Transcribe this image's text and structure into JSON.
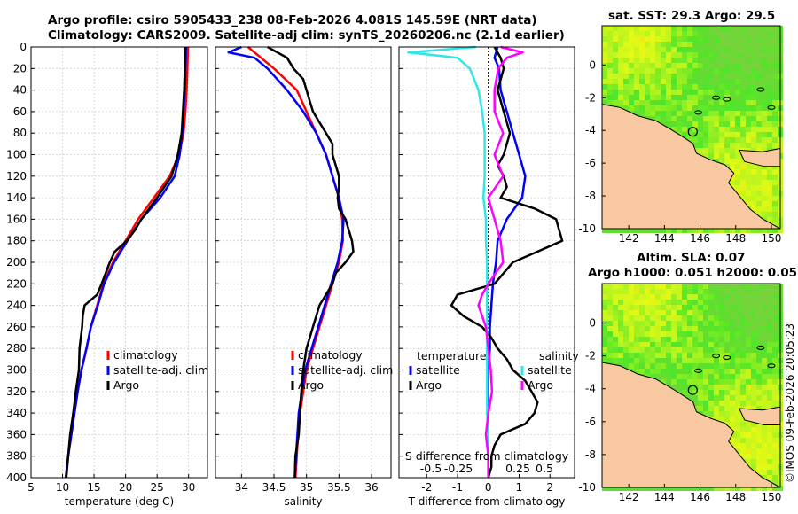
{
  "titles": {
    "line1": "Argo profile: csiro 5905433_238 08-Feb-2026 4.081S 145.59E (NRT data)",
    "line2": "Climatology: CARS2009. Satellite-adj clim: synTS_20260206.nc (2.1d earlier)",
    "sst": "sat. SST: 29.3 Argo: 29.5",
    "sla1": "Altim. SLA: 0.07",
    "sla2": "Argo h1000: 0.051 h2000: 0.05"
  },
  "copyright": "©IMOS 09-Feb-2026 20:05:23",
  "colors": {
    "climatology": "#ff0000",
    "satellite": "#0000ff",
    "argo": "#000000",
    "s_satellite": "#33e6e6",
    "s_argo": "#ff00ff",
    "land": "#f8c8a0"
  },
  "chart_data": [
    {
      "type": "line",
      "name": "temperature",
      "xlabel": "temperature (deg C)",
      "xlim": [
        5,
        33
      ],
      "xticks": [
        5,
        10,
        15,
        20,
        25,
        30
      ],
      "ylim": [
        0,
        400
      ],
      "yticks": [
        0,
        20,
        40,
        60,
        80,
        100,
        120,
        140,
        160,
        180,
        200,
        220,
        240,
        260,
        280,
        300,
        320,
        340,
        360,
        380,
        400
      ],
      "legend": [
        "climatology",
        "satellite-adj. clim",
        "Argo"
      ],
      "series": [
        {
          "name": "climatology",
          "color": "#ff0000",
          "depth": [
            0,
            20,
            40,
            60,
            80,
            100,
            120,
            140,
            160,
            180,
            200,
            220,
            240,
            260,
            280,
            300,
            320,
            340,
            360,
            380,
            400
          ],
          "values": [
            29.9,
            29.8,
            29.7,
            29.5,
            29.2,
            28.5,
            27.0,
            24.5,
            22.0,
            20.0,
            18.0,
            16.5,
            15.5,
            14.5,
            13.8,
            13.0,
            12.4,
            11.9,
            11.4,
            10.9,
            10.5
          ]
        },
        {
          "name": "satellite-adj. clim",
          "color": "#0000ff",
          "depth": [
            0,
            20,
            40,
            60,
            80,
            100,
            120,
            140,
            160,
            180,
            200,
            220,
            240,
            260,
            280,
            300,
            320,
            340,
            360,
            380,
            400
          ],
          "values": [
            29.6,
            29.5,
            29.4,
            29.2,
            29.0,
            28.6,
            27.8,
            25.5,
            22.5,
            20.3,
            18.2,
            16.6,
            15.6,
            14.5,
            13.8,
            13.0,
            12.4,
            11.9,
            11.4,
            10.9,
            10.5
          ]
        },
        {
          "name": "Argo",
          "color": "#000000",
          "depth": [
            0,
            20,
            40,
            60,
            80,
            100,
            120,
            140,
            160,
            170,
            180,
            190,
            200,
            220,
            230,
            240,
            250,
            260,
            280,
            300,
            320,
            340,
            360,
            380,
            400
          ],
          "values": [
            29.5,
            29.4,
            29.3,
            29.1,
            28.9,
            28.3,
            27.3,
            25.0,
            22.5,
            21.5,
            20.2,
            18.3,
            17.5,
            16.2,
            15.5,
            13.5,
            13.2,
            13.1,
            12.7,
            12.6,
            12.1,
            11.7,
            11.2,
            10.9,
            10.6
          ]
        }
      ]
    },
    {
      "type": "line",
      "name": "salinity",
      "xlabel": "salinity",
      "xlim": [
        33.6,
        36.3
      ],
      "xticks": [
        34,
        34.5,
        35,
        35.5,
        36
      ],
      "ylim": [
        0,
        400
      ],
      "legend": [
        "climatology",
        "satellite-adj. clim",
        "Argo"
      ],
      "series": [
        {
          "name": "climatology",
          "color": "#ff0000",
          "depth": [
            0,
            10,
            20,
            40,
            60,
            80,
            100,
            120,
            140,
            160,
            180,
            200,
            220,
            240,
            260,
            280,
            300,
            320,
            340,
            360,
            380,
            400
          ],
          "values": [
            34.1,
            34.3,
            34.5,
            34.85,
            35.0,
            35.15,
            35.3,
            35.4,
            35.5,
            35.55,
            35.56,
            35.5,
            35.4,
            35.3,
            35.2,
            35.1,
            35.0,
            34.95,
            34.9,
            34.87,
            34.85,
            34.83
          ]
        },
        {
          "name": "satellite-adj. clim",
          "color": "#0000ff",
          "depth": [
            0,
            5,
            10,
            20,
            40,
            60,
            80,
            100,
            120,
            140,
            160,
            180,
            200,
            220,
            240,
            260,
            280,
            300,
            320,
            340,
            360,
            380,
            400
          ],
          "values": [
            34.0,
            33.8,
            34.2,
            34.4,
            34.7,
            34.95,
            35.15,
            35.3,
            35.4,
            35.5,
            35.57,
            35.55,
            35.48,
            35.38,
            35.28,
            35.18,
            35.08,
            34.98,
            34.93,
            34.88,
            34.86,
            34.84,
            34.82
          ]
        },
        {
          "name": "Argo",
          "color": "#000000",
          "depth": [
            0,
            10,
            20,
            30,
            40,
            50,
            60,
            70,
            80,
            90,
            100,
            110,
            120,
            130,
            140,
            150,
            160,
            170,
            180,
            190,
            200,
            210,
            220,
            240,
            260,
            280,
            300,
            320,
            340,
            360,
            380,
            400
          ],
          "values": [
            34.4,
            34.7,
            34.8,
            34.95,
            35.0,
            35.05,
            35.1,
            35.2,
            35.3,
            35.4,
            35.4,
            35.45,
            35.5,
            35.5,
            35.48,
            35.5,
            35.6,
            35.65,
            35.7,
            35.72,
            35.6,
            35.45,
            35.4,
            35.2,
            35.1,
            35.0,
            34.95,
            34.92,
            34.9,
            34.88,
            34.83,
            34.82
          ]
        }
      ]
    },
    {
      "type": "line",
      "name": "difference",
      "xlabel": "T difference from climatology",
      "xlabel_top": "S difference from climatology",
      "xlim": [
        -2.9,
        2.8
      ],
      "xticks": [
        -2,
        -1,
        0,
        1,
        2
      ],
      "xticks_s": [
        "-0.5",
        "-0.25",
        "0.25",
        "0.5"
      ],
      "ylim": [
        0,
        400
      ],
      "legend_t": {
        "heading": "temperature",
        "items": [
          "satellite",
          "Argo"
        ]
      },
      "legend_s": {
        "heading": "salinity",
        "items": [
          "satellite",
          "Argo"
        ]
      },
      "series": [
        {
          "name": "T satellite",
          "color": "#0000ff",
          "depth": [
            0,
            10,
            20,
            40,
            60,
            80,
            100,
            120,
            140,
            160,
            180,
            200,
            220,
            240,
            260,
            280,
            300,
            320,
            340,
            360,
            380,
            400
          ],
          "values": [
            0.3,
            0.2,
            0.35,
            0.4,
            0.6,
            0.8,
            1.0,
            1.2,
            1.1,
            0.6,
            0.3,
            0.25,
            0.15,
            0.1,
            0.05,
            0.05,
            0.0,
            0.0,
            0.0,
            0.0,
            0.0,
            0.0
          ]
        },
        {
          "name": "T Argo",
          "color": "#000000",
          "depth": [
            0,
            10,
            20,
            40,
            60,
            80,
            100,
            110,
            120,
            130,
            140,
            150,
            160,
            170,
            180,
            190,
            200,
            210,
            220,
            230,
            240,
            250,
            260,
            270,
            280,
            290,
            300,
            310,
            320,
            330,
            340,
            350,
            360,
            370,
            380,
            390,
            400
          ],
          "values": [
            0.2,
            0.4,
            0.5,
            0.3,
            0.5,
            0.7,
            0.5,
            0.3,
            0.5,
            0.6,
            0.4,
            1.5,
            2.2,
            2.3,
            2.4,
            1.6,
            0.8,
            0.5,
            0.2,
            -1.0,
            -1.2,
            -0.8,
            -0.2,
            0.1,
            0.3,
            0.6,
            0.8,
            1.2,
            1.4,
            1.6,
            1.5,
            1.2,
            0.4,
            0.2,
            0.1,
            0.1,
            0.0
          ]
        },
        {
          "name": "S satellite",
          "color": "#33e6e6",
          "depth": [
            0,
            5,
            10,
            20,
            40,
            60,
            80,
            100,
            120,
            140,
            160,
            180,
            200,
            220,
            240,
            260,
            280,
            300,
            320,
            340,
            360,
            380,
            400
          ],
          "values": [
            -0.1,
            -0.65,
            -0.25,
            -0.15,
            -0.08,
            -0.05,
            -0.03,
            -0.03,
            -0.03,
            -0.04,
            -0.02,
            -0.02,
            -0.01,
            -0.01,
            -0.01,
            -0.01,
            -0.01,
            -0.01,
            -0.01,
            -0.01,
            0.0,
            0.0,
            0.0
          ]
        },
        {
          "name": "S Argo",
          "color": "#ff00ff",
          "depth": [
            0,
            5,
            10,
            20,
            40,
            60,
            80,
            100,
            120,
            140,
            160,
            180,
            200,
            220,
            230,
            240,
            260,
            280,
            300,
            320,
            340,
            360,
            380,
            400
          ],
          "values": [
            0.1,
            0.28,
            0.15,
            0.08,
            0.05,
            0.05,
            0.12,
            0.05,
            0.12,
            0.0,
            0.05,
            0.1,
            0.12,
            0.0,
            -0.05,
            -0.08,
            -0.02,
            0.0,
            0.02,
            0.03,
            0.0,
            -0.02,
            0.0,
            0.0
          ]
        }
      ]
    }
  ],
  "maps": {
    "sst": {
      "xticks": [
        "142",
        "144",
        "146",
        "148",
        "150"
      ],
      "yticks": [
        "0",
        "-2",
        "-4",
        "-6",
        "-8",
        "-10"
      ]
    },
    "sla": {
      "xticks": [
        "142",
        "144",
        "146",
        "148",
        "150"
      ],
      "yticks": [
        "0",
        "-2",
        "-4",
        "-6",
        "-8",
        "-10"
      ]
    }
  }
}
